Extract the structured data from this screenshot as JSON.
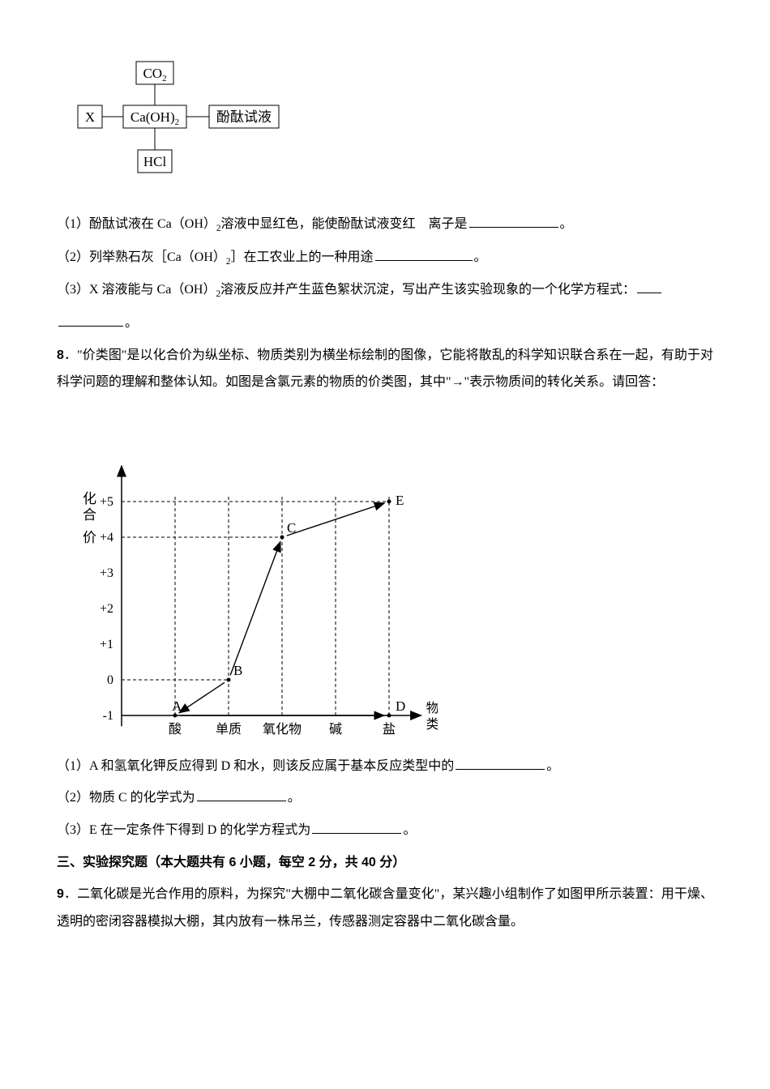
{
  "diagram1": {
    "boxes": {
      "co2": "CO₂",
      "x": "X",
      "caoh2": "Ca(OH)₂",
      "phenol": "酚酞试液",
      "hcl": "HCl"
    },
    "style": {
      "stroke": "#000000",
      "fill": "#ffffff",
      "fontsize": 17
    }
  },
  "q7": {
    "p1a": "（1）酚酞试液在 Ca（OH）",
    "p1b": "溶液中显红色，能使酚酞试液变红　离子是",
    "p1c": "。",
    "p2a": "（2）列举熟石灰［Ca（OH）",
    "p2b": "］在工农业上的一种用途",
    "p2c": "。",
    "p3a": "（3）X 溶液能与 Ca（OH）",
    "p3b": "溶液反应并产生蓝色絮状沉淀，写出产生该实验现象的一个化学方程式：",
    "p3c": "。",
    "sub2": "2",
    "blank_w1": 110,
    "blank_w2": 120,
    "blank_w3a": 30,
    "blank_w3b": 80
  },
  "q8": {
    "num": "8",
    "stem": "．\"价类图\"是以化合价为纵坐标、物质类别为横坐标绘制的图像，它能将散乱的科学知识联合系在一起，有助于对科学问题的理解和整体认知。如图是含氯元素的物质的价类图，其中\"→\"表示物质间的转化关系。请回答：",
    "p1a": "（1）A 和氢氧化钾反应得到 D 和水，则该反应属于基本反应类型中的",
    "p1b": "。",
    "p2a": "（2）物质 C 的化学式为",
    "p2b": "。",
    "p3a": "（3）E 在一定条件下得到 D 的化学方程式为",
    "p3b": "。",
    "blank_w": 110
  },
  "chart": {
    "ylabel_top": "化",
    "ylabel_mid": "合",
    "ylabel_bot": "价",
    "xlabel1": "物质",
    "xlabel2": "类别",
    "yticks": [
      "+5",
      "+4",
      "+3",
      "+2",
      "+1",
      "0",
      "-1"
    ],
    "xticks": [
      "酸",
      "单质",
      "氧化物",
      "碱",
      "盐"
    ],
    "points": {
      "A": {
        "x": 1,
        "y": -1,
        "label": "A"
      },
      "B": {
        "x": 2,
        "y": 0,
        "label": "B"
      },
      "C": {
        "x": 3,
        "y": 4,
        "label": "C"
      },
      "D": {
        "x": 5,
        "y": -1,
        "label": "D"
      },
      "E": {
        "x": 5,
        "y": 5,
        "label": "E"
      }
    },
    "arrows": [
      [
        "B",
        "A"
      ],
      [
        "B",
        "C"
      ],
      [
        "A",
        "D"
      ],
      [
        "C",
        "E"
      ]
    ],
    "style": {
      "axis_color": "#000000",
      "dash": "4 3",
      "fontsize_tick": 16,
      "fontsize_point": 17
    }
  },
  "section3": {
    "title": "三、实验探究题（本大题共有 6 小题，每空 2 分，共 40 分）"
  },
  "q9": {
    "num": "9",
    "stem": "．二氧化碳是光合作用的原料，为探究\"大棚中二氧化碳含量变化\"，某兴趣小组制作了如图甲所示装置：用干燥、透明的密闭容器模拟大棚，其内放有一株吊兰，传感器测定容器中二氧化碳含量。"
  }
}
